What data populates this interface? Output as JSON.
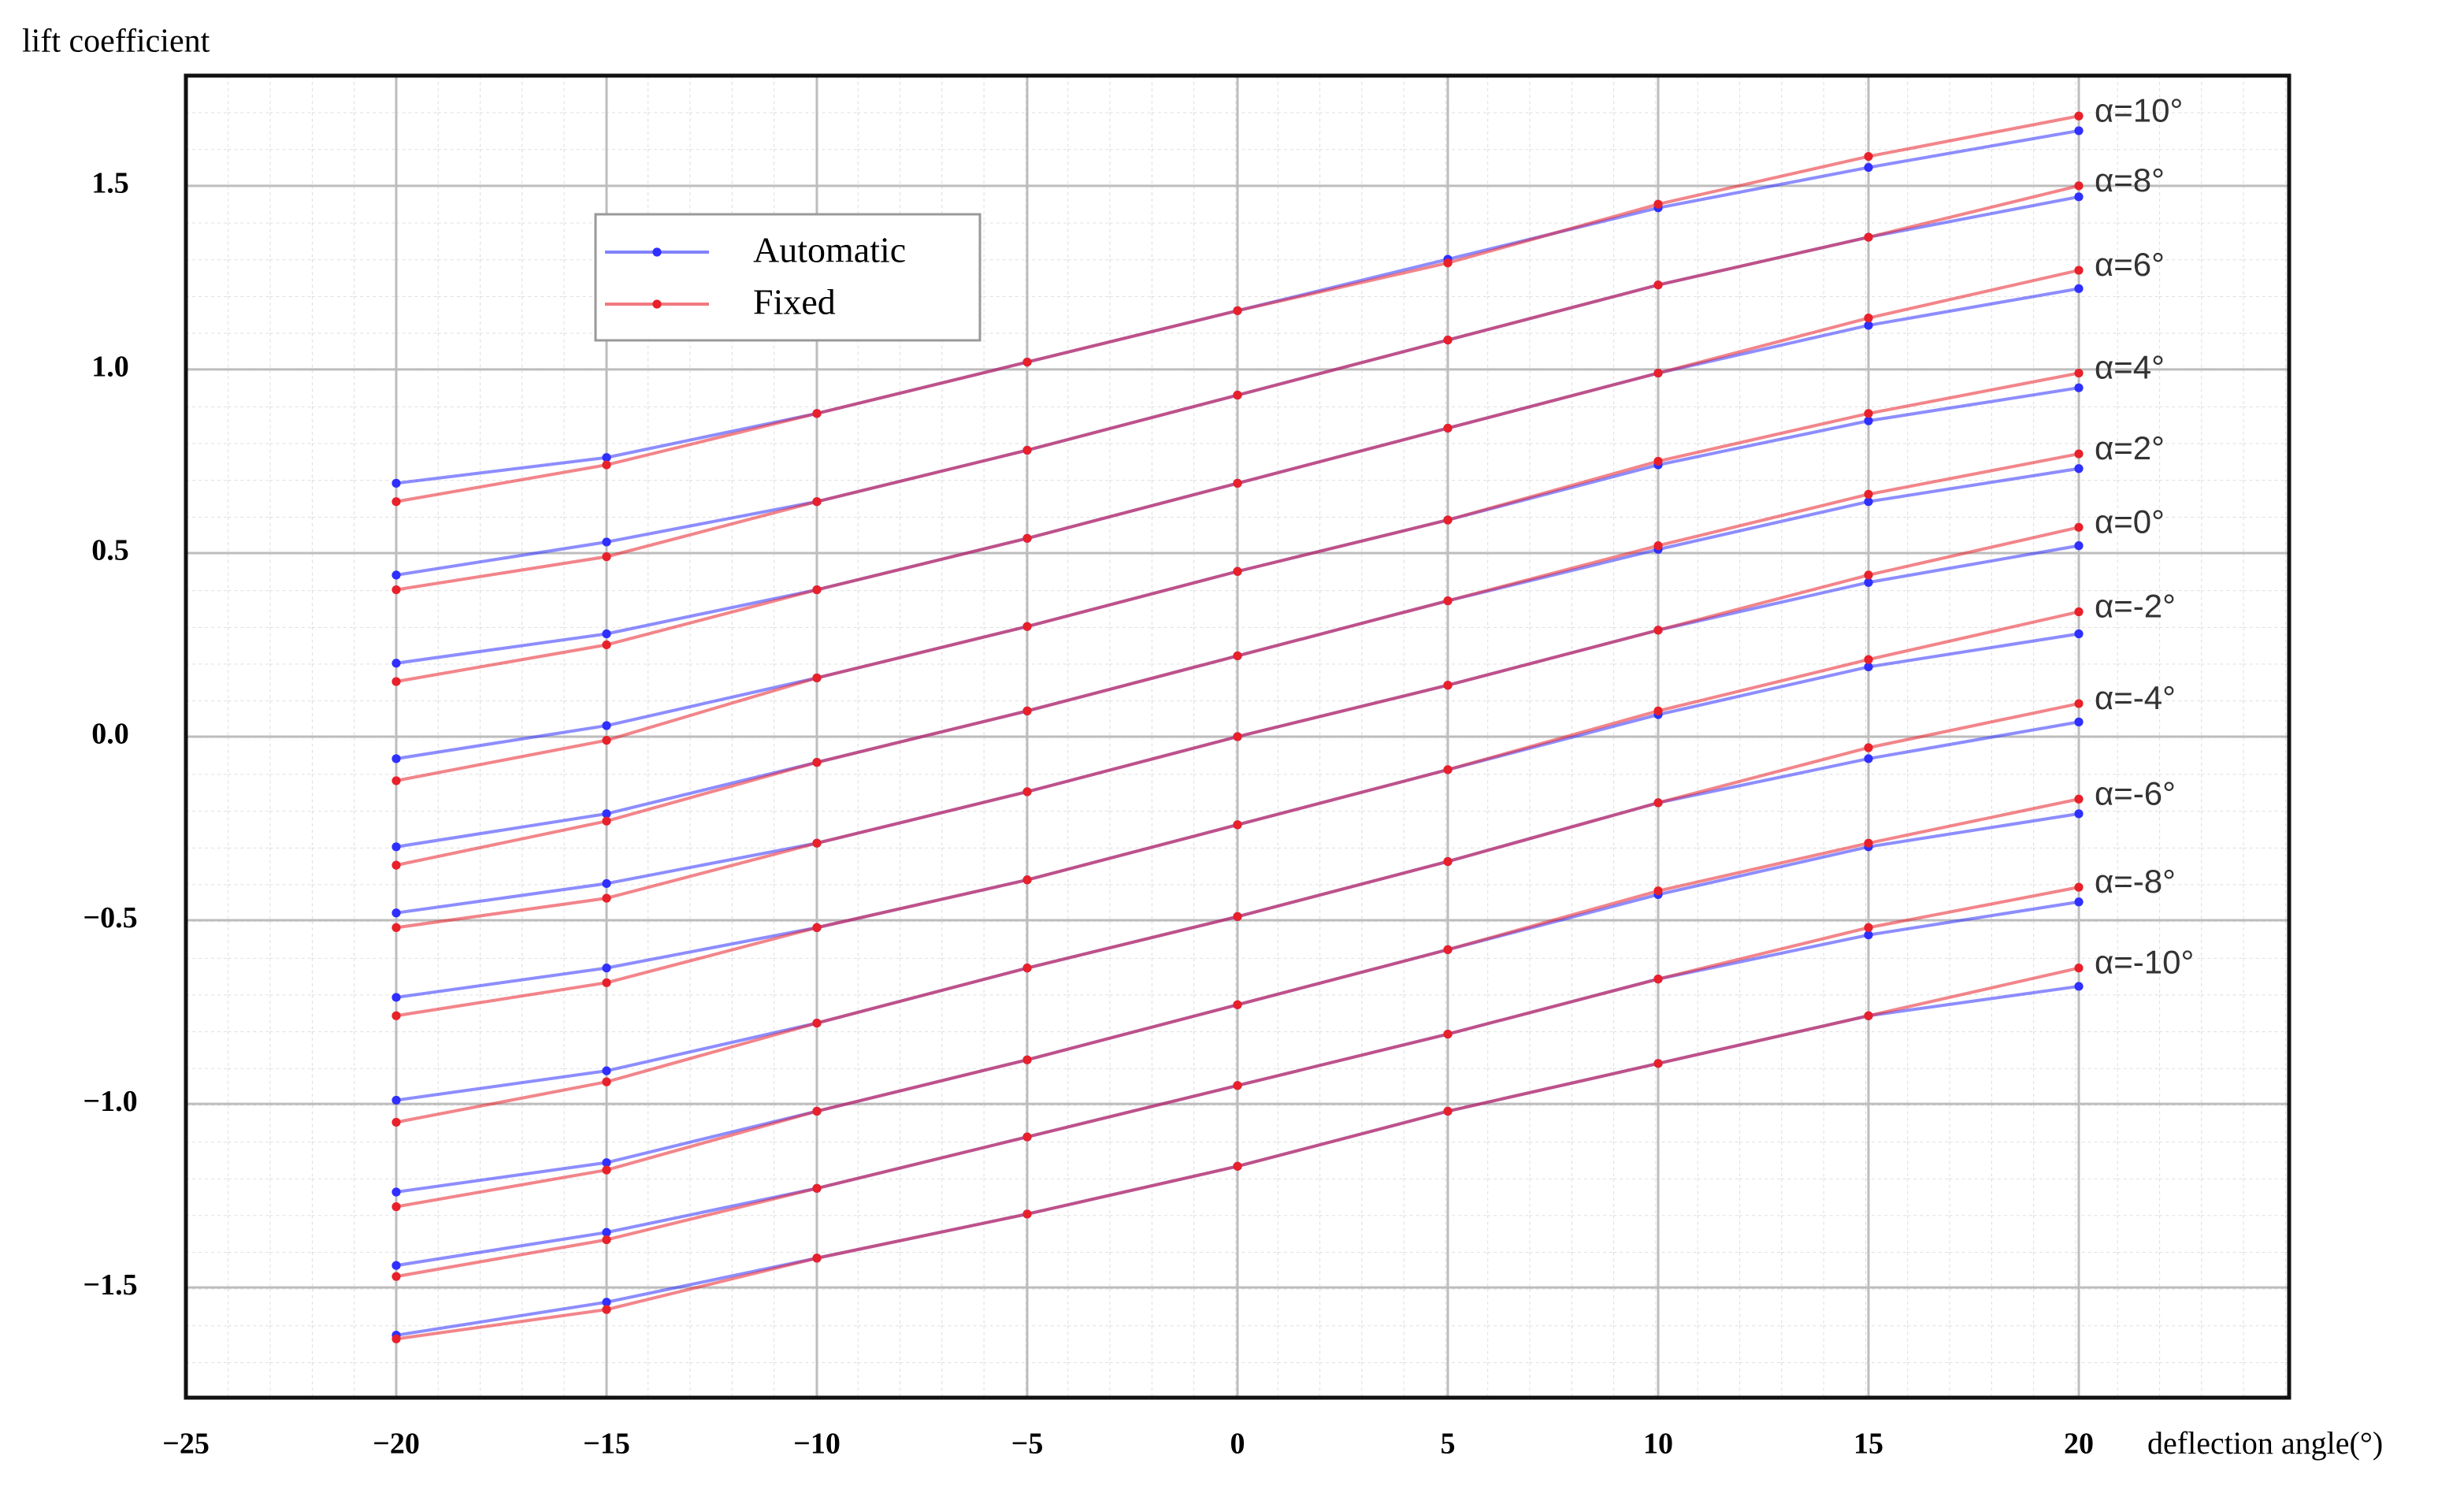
{
  "chart_data": {
    "type": "line",
    "y_label": "lift coefficient",
    "x_label": "deflection angle(°)",
    "x": [
      -20,
      -15,
      -10,
      -5,
      0,
      5,
      10,
      15,
      20
    ],
    "xlim": [
      -25,
      25
    ],
    "xticks": [
      {
        "value": -25,
        "label": "−25"
      },
      {
        "value": -20,
        "label": "−20"
      },
      {
        "value": -15,
        "label": "−15"
      },
      {
        "value": -10,
        "label": "−10"
      },
      {
        "value": -5,
        "label": "−5"
      },
      0,
      5,
      10,
      15,
      20
    ],
    "ylim": [
      -1.8,
      1.8
    ],
    "yticks": [
      {
        "value": -1.5,
        "label": "−1.5"
      },
      {
        "value": -1,
        "label": "−1.0"
      },
      {
        "value": -0.5,
        "label": "−0.5"
      },
      {
        "value": 0,
        "label": "0.0"
      },
      0.5,
      {
        "value": 1,
        "label": "1.0"
      },
      1.5
    ],
    "grid": true,
    "legend": "upper left",
    "curve_labels": [
      "α=10°",
      "α=8°",
      "α=6°",
      "α=4°",
      "α=2°",
      "α=0°",
      "α=-2°",
      "α=-4°",
      "α=-6°",
      "α=-8°",
      "α=-10°"
    ],
    "series": [
      {
        "name": "Automatic",
        "color": "#2f2fff",
        "values": [
          [
            0.69,
            0.76,
            0.88,
            1.02,
            1.16,
            1.3,
            1.44,
            1.55,
            1.65
          ],
          [
            0.44,
            0.53,
            0.64,
            0.78,
            0.93,
            1.08,
            1.23,
            1.36,
            1.47
          ],
          [
            0.2,
            0.28,
            0.4,
            0.54,
            0.69,
            0.84,
            0.99,
            1.12,
            1.22
          ],
          [
            -0.06,
            0.03,
            0.16,
            0.3,
            0.45,
            0.59,
            0.74,
            0.86,
            0.95
          ],
          [
            -0.3,
            -0.21,
            -0.07,
            0.07,
            0.22,
            0.37,
            0.51,
            0.64,
            0.73
          ],
          [
            -0.48,
            -0.4,
            -0.29,
            -0.15,
            0,
            0.14,
            0.29,
            0.42,
            0.52
          ],
          [
            -0.71,
            -0.63,
            -0.52,
            -0.39,
            -0.24,
            -0.09,
            0.06,
            0.19,
            0.28
          ],
          [
            -0.99,
            -0.91,
            -0.78,
            -0.63,
            -0.49,
            -0.34,
            -0.18,
            -0.06,
            0.04
          ],
          [
            -1.24,
            -1.16,
            -1.02,
            -0.88,
            -0.73,
            -0.58,
            -0.43,
            -0.3,
            -0.21
          ],
          [
            -1.44,
            -1.35,
            -1.23,
            -1.09,
            -0.95,
            -0.81,
            -0.66,
            -0.54,
            -0.45
          ],
          [
            -1.63,
            -1.54,
            -1.42,
            -1.3,
            -1.17,
            -1.02,
            -0.89,
            -0.76,
            -0.68
          ]
        ]
      },
      {
        "name": "Fixed",
        "color": "#e8202a",
        "values": [
          [
            0.64,
            0.74,
            0.88,
            1.02,
            1.16,
            1.29,
            1.45,
            1.58,
            1.69
          ],
          [
            0.4,
            0.49,
            0.64,
            0.78,
            0.93,
            1.08,
            1.23,
            1.36,
            1.5
          ],
          [
            0.15,
            0.25,
            0.4,
            0.54,
            0.69,
            0.84,
            0.99,
            1.14,
            1.27
          ],
          [
            -0.12,
            -0.01,
            0.16,
            0.3,
            0.45,
            0.59,
            0.75,
            0.88,
            0.99
          ],
          [
            -0.35,
            -0.23,
            -0.07,
            0.07,
            0.22,
            0.37,
            0.52,
            0.66,
            0.77
          ],
          [
            -0.52,
            -0.44,
            -0.29,
            -0.15,
            0,
            0.14,
            0.29,
            0.44,
            0.57
          ],
          [
            -0.76,
            -0.67,
            -0.52,
            -0.39,
            -0.24,
            -0.09,
            0.07,
            0.21,
            0.34
          ],
          [
            -1.05,
            -0.94,
            -0.78,
            -0.63,
            -0.49,
            -0.34,
            -0.18,
            -0.03,
            0.09
          ],
          [
            -1.28,
            -1.18,
            -1.02,
            -0.88,
            -0.73,
            -0.58,
            -0.42,
            -0.29,
            -0.17
          ],
          [
            -1.47,
            -1.37,
            -1.23,
            -1.09,
            -0.95,
            -0.81,
            -0.66,
            -0.52,
            -0.41
          ],
          [
            -1.64,
            -1.56,
            -1.42,
            -1.3,
            -1.17,
            -1.02,
            -0.89,
            -0.76,
            -0.63
          ]
        ]
      }
    ]
  }
}
